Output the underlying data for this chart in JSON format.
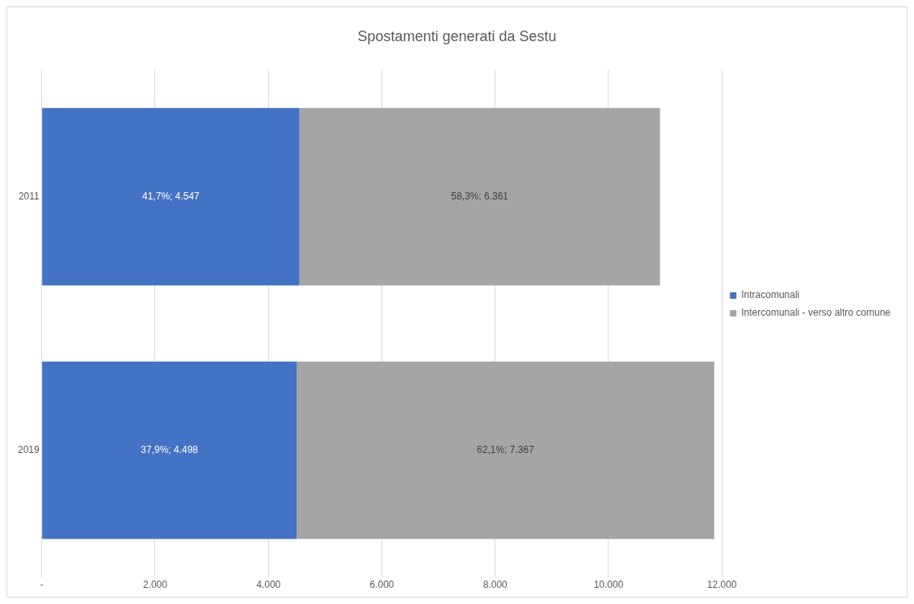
{
  "chart_data": {
    "type": "bar",
    "orientation": "horizontal",
    "stacked": true,
    "title": "Spostamenti generati da Sestu",
    "categories": [
      "2011",
      "2019"
    ],
    "series": [
      {
        "name": "Intracomunali",
        "color": "#4472c4",
        "values": [
          4547,
          4498
        ],
        "value_labels": [
          "41,7%; 4.547",
          "37,9%; 4.498"
        ]
      },
      {
        "name": "Intercomunali - verso altro comune",
        "color": "#a5a5a5",
        "values": [
          6361,
          7367
        ],
        "value_labels": [
          "58,3%; 6.361",
          "62,1%; 7.367"
        ]
      }
    ],
    "xlim": [
      0,
      12000
    ],
    "xticks": [
      {
        "value": 0,
        "label": "-"
      },
      {
        "value": 2000,
        "label": "2.000"
      },
      {
        "value": 4000,
        "label": "4.000"
      },
      {
        "value": 6000,
        "label": "6.000"
      },
      {
        "value": 8000,
        "label": "8.000"
      },
      {
        "value": 10000,
        "label": "10.000"
      },
      {
        "value": 12000,
        "label": "12.000"
      }
    ],
    "grid": "x",
    "legend": "right"
  }
}
